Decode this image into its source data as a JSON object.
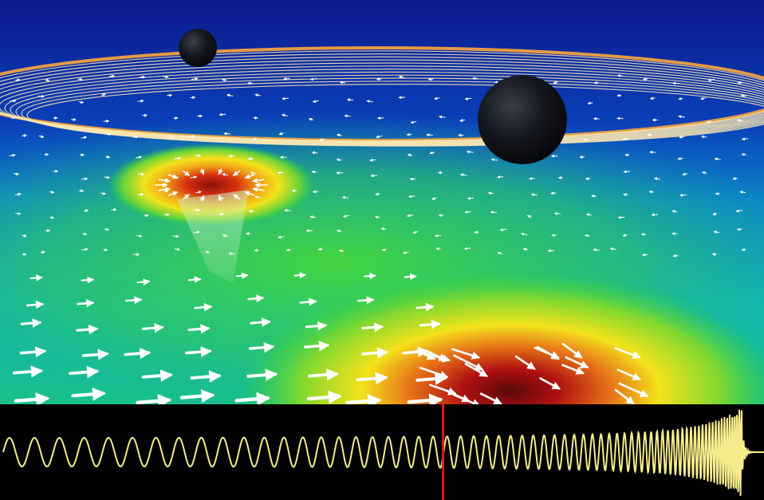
{
  "scene": {
    "colors": {
      "background_top": "#0b1a8c",
      "background_mid": "#0a4fc0",
      "field_green": "#2fd43a",
      "field_yellow": "#f3e21b",
      "field_red": "#b01010",
      "arrow": "#ffffff",
      "orbit": "#ffe38a",
      "waveform": "#f4ec8c",
      "marker": "#e01818"
    },
    "objects": [
      "black-hole-small",
      "black-hole-large",
      "orbit-trails",
      "vector-field-arrows",
      "strain-waveform",
      "time-marker"
    ]
  },
  "waveform": {
    "marker_fraction": 0.58
  }
}
